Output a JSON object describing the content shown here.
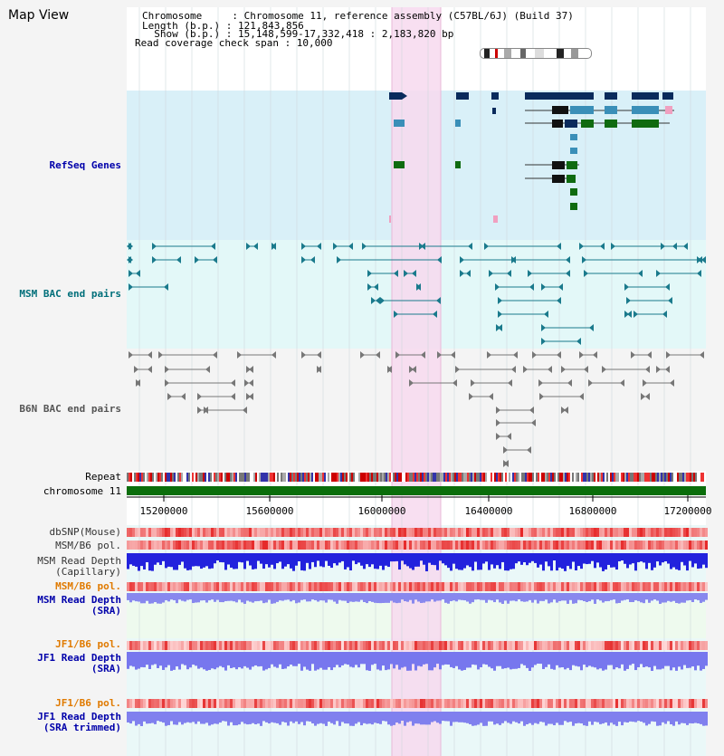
{
  "page_title": "Map View",
  "info": {
    "chromosome_line": "Chromosome     : Chromosome 11, reference assembly (C57BL/6J) (Build 37)",
    "length_line": "Length (b.p.) : 121,843,856",
    "show_line": "  Show (b.p.) : 15,148,599-17,332,418 : 2,183,820 bp",
    "coverage_line": "Read coverage check span : 10,000"
  },
  "tracks": {
    "refseq": "RefSeq Genes",
    "msm_bac": "MSM BAC end pairs",
    "b6n_bac": "B6N BAC end pairs",
    "repeat": "Repeat",
    "chromosome": "chromosome 11",
    "dbsnp": "dbSNP(Mouse)",
    "msm_b6_pol": "MSM/B6 pol.",
    "msm_depth_cap_1": "MSM Read Depth",
    "msm_depth_cap_2": "(Capillary)",
    "msm_b6_pol2": "MSM/B6 pol.",
    "msm_depth_sra_1": "MSM Read Depth",
    "msm_depth_sra_2": "(SRA)",
    "jf1_pol1": "JF1/B6 pol.",
    "jf1_depth_1": "JF1 Read Depth",
    "jf1_depth_2": "(SRA)",
    "jf1_pol2": "JF1/B6 pol.",
    "jf1_trim_1": "JF1 Read Depth",
    "jf1_trim_2": "(SRA trimmed)"
  },
  "axis_ticks": [
    "15200000",
    "15600000",
    "16000000",
    "16400000",
    "16800000",
    "17200000"
  ],
  "colors": {
    "refseq_bg": "#d9f0f8",
    "msm_bg": "#e3f8f8",
    "b6n_bg": "#f4f4f4",
    "highlight": "#f7d9ee",
    "label_blue": "#0000aa",
    "label_teal": "#006f7a",
    "label_gray": "#555555",
    "label_orange": "#e07a00",
    "gene_dark": "#0a2b5c",
    "gene_mid": "#3a8fb8",
    "gene_green": "#0f6b10",
    "msm_feature": "#1a7a8c",
    "b6n_feature": "#777777",
    "chrom_green": "#0b6e0b"
  }
}
